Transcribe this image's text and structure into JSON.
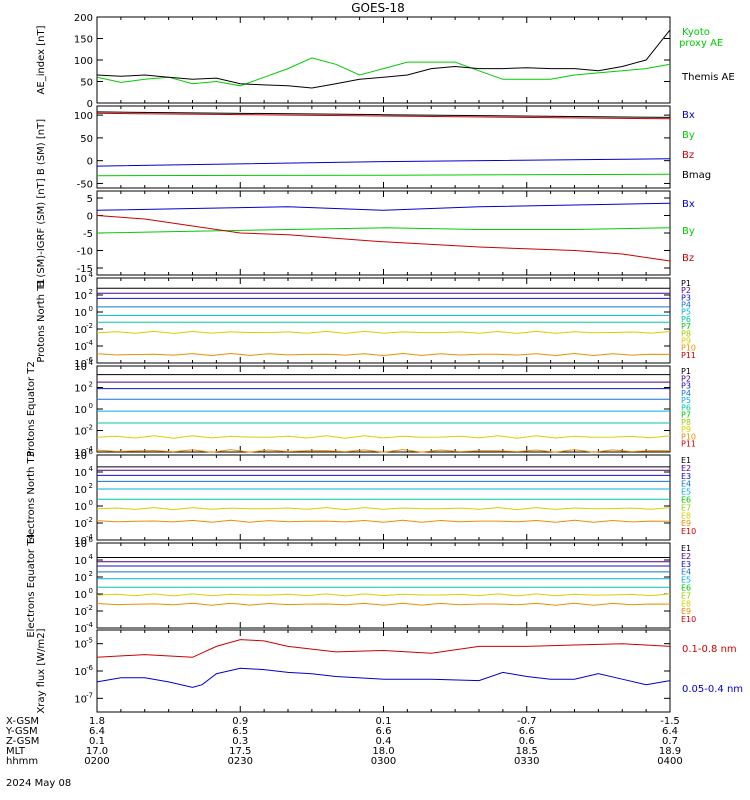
{
  "title": "GOES-18",
  "date_label": "2024 May 08",
  "orbit": {
    "row_labels": [
      "X-GSM",
      "Y-GSM",
      "Z-GSM",
      "MLT",
      "hhmm"
    ],
    "columns": [
      [
        "1.8",
        "6.4",
        "0.1",
        "17.0",
        "0200"
      ],
      [
        "0.9",
        "6.5",
        "0.3",
        "17.5",
        "0230"
      ],
      [
        "0.1",
        "6.6",
        "0.4",
        "18.0",
        "0300"
      ],
      [
        "-0.7",
        "6.6",
        "0.6",
        "18.5",
        "0330"
      ],
      [
        "-1.5",
        "6.4",
        "0.7",
        "18.9",
        "0400"
      ]
    ]
  },
  "colors": {
    "black": "#000000",
    "green": "#00cc00",
    "blue": "#0000cc",
    "red": "#cc0000",
    "channels": [
      "#000000",
      "#55008a",
      "#1010cc",
      "#1070e0",
      "#00b0e0",
      "#00c8a0",
      "#00c800",
      "#a0d000",
      "#d8d000",
      "#e89000",
      "#cc0000"
    ]
  },
  "chart_data": [
    {
      "type": "line",
      "ylabel": "AE_index [nT]",
      "yticks": [
        "200",
        "150",
        "100",
        "50",
        "0"
      ],
      "ylim": [
        0,
        200
      ],
      "series": [
        {
          "name": "Kyoto proxy AE",
          "color": "green",
          "x": [
            0,
            5,
            10,
            15,
            20,
            25,
            30,
            35,
            40,
            45,
            50,
            55,
            60,
            65,
            70,
            75,
            80,
            85,
            90,
            95,
            100,
            105,
            110,
            115,
            120
          ],
          "y": [
            60,
            48,
            55,
            60,
            45,
            50,
            40,
            60,
            80,
            105,
            90,
            65,
            80,
            95,
            95,
            95,
            75,
            55,
            55,
            55,
            65,
            70,
            75,
            80,
            90
          ]
        },
        {
          "name": "Themis AE",
          "color": "black",
          "x": [
            0,
            5,
            10,
            15,
            20,
            25,
            30,
            35,
            40,
            45,
            50,
            55,
            60,
            65,
            70,
            75,
            80,
            85,
            90,
            95,
            100,
            105,
            110,
            115,
            120
          ],
          "y": [
            65,
            62,
            65,
            60,
            55,
            58,
            45,
            42,
            40,
            35,
            45,
            55,
            60,
            65,
            80,
            85,
            80,
            80,
            82,
            80,
            80,
            75,
            85,
            100,
            170
          ]
        }
      ]
    },
    {
      "type": "line",
      "ylabel": "B (SM) [nT]",
      "yticks": [
        "100",
        "50",
        "0",
        "-50"
      ],
      "ylim": [
        -60,
        120
      ],
      "series": [
        {
          "name": "Bx",
          "color": "blue",
          "x": [
            0,
            60,
            120
          ],
          "y": [
            -12,
            -2,
            4
          ]
        },
        {
          "name": "By",
          "color": "green",
          "x": [
            0,
            60,
            120
          ],
          "y": [
            -33,
            -32,
            -30
          ]
        },
        {
          "name": "Bz",
          "color": "red",
          "x": [
            0,
            60,
            120
          ],
          "y": [
            104,
            98,
            92
          ]
        },
        {
          "name": "Bmag",
          "color": "black",
          "x": [
            0,
            60,
            120
          ],
          "y": [
            107,
            101,
            95
          ]
        }
      ]
    },
    {
      "type": "line",
      "ylabel": "B (SM)-IGRF (SM) [nT]",
      "yticks": [
        "5",
        "0",
        "-5",
        "-10",
        "-15"
      ],
      "ylim": [
        -17,
        7
      ],
      "series": [
        {
          "name": "Bx",
          "color": "blue",
          "x": [
            0,
            20,
            40,
            60,
            80,
            100,
            120
          ],
          "y": [
            1.5,
            2,
            2.5,
            1.5,
            2.5,
            3,
            3.5
          ]
        },
        {
          "name": "By",
          "color": "green",
          "x": [
            0,
            20,
            40,
            60,
            80,
            100,
            120
          ],
          "y": [
            -5,
            -4.5,
            -4,
            -3.5,
            -4,
            -4,
            -3.5
          ]
        },
        {
          "name": "Bz",
          "color": "red",
          "x": [
            0,
            10,
            20,
            30,
            40,
            60,
            80,
            100,
            110,
            120
          ],
          "y": [
            0,
            -1,
            -3,
            -5,
            -5.5,
            -7.5,
            -9,
            -10,
            -11,
            -13
          ]
        }
      ]
    },
    {
      "type": "line",
      "ylabel": "Protons North T1",
      "ylim_log": [
        -6,
        4
      ],
      "yticks_exp": [
        "4",
        "2",
        "0",
        "-2",
        "-4",
        "-6"
      ],
      "legend": [
        "P1",
        "P2",
        "P3",
        "P4",
        "P5",
        "P6",
        "P7",
        "P8",
        "P9",
        "P10",
        "P11"
      ],
      "levels_log": [
        2.8,
        2.2,
        1.6,
        0.6,
        -0.4,
        -1.2,
        -2.4,
        -5.0
      ]
    },
    {
      "type": "line",
      "ylabel": "Protons Equator T2",
      "ylim_log": [
        -4,
        4
      ],
      "yticks_exp": [
        "4",
        "2",
        "0",
        "-2",
        "-4"
      ],
      "legend": [
        "P1",
        "P2",
        "P3",
        "P4",
        "P5",
        "P6",
        "P7",
        "P8",
        "P9",
        "P10",
        "P11"
      ],
      "levels_log": [
        3.2,
        2.5,
        1.9,
        0.9,
        -0.2,
        -1.3,
        -2.6,
        -3.9
      ]
    },
    {
      "type": "line",
      "ylabel": "Electrons North T3",
      "ylim_log": [
        -4,
        6
      ],
      "yticks_exp": [
        "6",
        "4",
        "2",
        "0",
        "-2",
        "-4"
      ],
      "legend": [
        "E1",
        "E2",
        "E3",
        "E4",
        "E5",
        "E6",
        "E7",
        "E8",
        "E9",
        "E10"
      ],
      "levels_log": [
        4.6,
        4.2,
        3.6,
        2.9,
        2.0,
        0.8,
        -0.3,
        -1.8
      ]
    },
    {
      "type": "line",
      "ylabel": "Electrons Equator T4",
      "ylim_log": [
        -4,
        6
      ],
      "yticks_exp": [
        "6",
        "4",
        "2",
        "0",
        "-2",
        "-4"
      ],
      "legend": [
        "E1",
        "E2",
        "E3",
        "E4",
        "E5",
        "E6",
        "E7",
        "E8",
        "E9",
        "E10"
      ],
      "levels_log": [
        4.3,
        3.8,
        3.3,
        2.6,
        1.8,
        0.8,
        -0.1,
        -1.2
      ]
    },
    {
      "type": "line",
      "ylabel": "Xray flux [W/m2]",
      "ylim_log": [
        -7.5,
        -4.5
      ],
      "yticks_exp": [
        "-5",
        "-6",
        "-7"
      ],
      "series": [
        {
          "name": "0.1-0.8 nm",
          "color": "red",
          "x": [
            0,
            10,
            20,
            25,
            30,
            35,
            40,
            50,
            60,
            70,
            80,
            90,
            100,
            110,
            120
          ],
          "y": [
            -5.5,
            -5.4,
            -5.5,
            -5.1,
            -4.85,
            -4.9,
            -5.1,
            -5.3,
            -5.25,
            -5.35,
            -5.1,
            -5.1,
            -5.05,
            -5.0,
            -5.1
          ]
        },
        {
          "name": "0.05-0.4 nm",
          "color": "blue",
          "x": [
            0,
            5,
            10,
            15,
            20,
            22,
            25,
            30,
            35,
            40,
            45,
            50,
            60,
            70,
            80,
            85,
            90,
            95,
            100,
            105,
            110,
            115,
            120
          ],
          "y": [
            -6.4,
            -6.25,
            -6.25,
            -6.4,
            -6.6,
            -6.5,
            -6.1,
            -5.9,
            -5.95,
            -6.05,
            -6.1,
            -6.2,
            -6.3,
            -6.3,
            -6.35,
            -6.05,
            -6.2,
            -6.3,
            -6.3,
            -6.1,
            -6.3,
            -6.5,
            -6.35
          ]
        }
      ]
    }
  ]
}
